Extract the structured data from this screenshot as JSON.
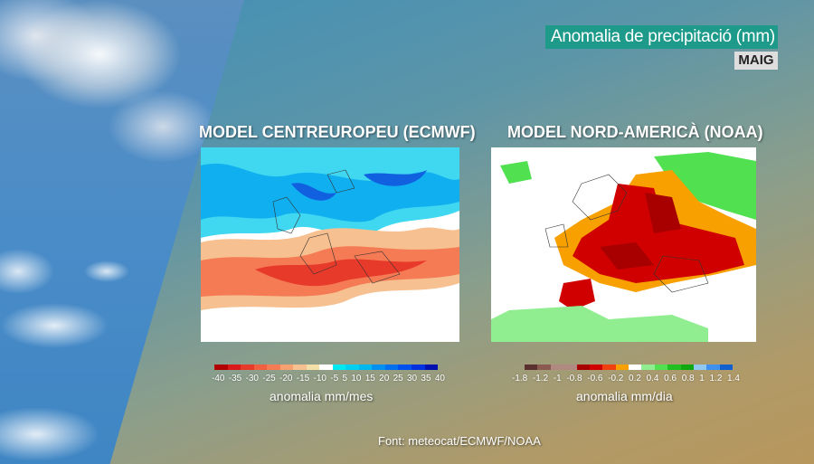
{
  "header": {
    "title": "Anomalia de precipitació (mm)",
    "month": "MAIG"
  },
  "left_panel": {
    "title": "MODEL CENTREUROPEU (ECMWF)",
    "colorbar": {
      "colors": [
        "#b00000",
        "#d81a1a",
        "#e83a2a",
        "#f06040",
        "#f57b55",
        "#f7a070",
        "#f7c090",
        "#f5dfa8",
        "#ffffff",
        "#00e8f0",
        "#00d0f0",
        "#00b8f0",
        "#0090f0",
        "#0070f0",
        "#0050f0",
        "#0030e0",
        "#0010b0"
      ],
      "ticks": [
        "-40",
        "-35",
        "-30",
        "-25",
        "-20",
        "-15",
        "-10",
        "-5",
        "5",
        "10",
        "15",
        "20",
        "25",
        "30",
        "35",
        "40"
      ]
    },
    "unit": "anomalia mm/mes"
  },
  "right_panel": {
    "title": "MODEL NORD-AMERICÀ (NOAA)",
    "colorbar": {
      "colors": [
        "#5a3030",
        "#8a5a50",
        "#b08a80",
        "#b08a80",
        "#a80000",
        "#d00000",
        "#f04010",
        "#f8a000",
        "#ffffff",
        "#90ee90",
        "#50e050",
        "#20c020",
        "#10a810",
        "#90c8f0",
        "#4090f0",
        "#1060d0"
      ],
      "ticks": [
        "-1.8",
        "-1.2",
        "-1",
        "-0.8",
        "-0.6",
        "-0.2",
        "0.2",
        "0.4",
        "0.6",
        "0.8",
        "1",
        "1.2",
        "1.4"
      ]
    },
    "unit": "anomalia mm/dia"
  },
  "footer": {
    "source": "Font: meteocat/ECMWF/NOAA"
  }
}
